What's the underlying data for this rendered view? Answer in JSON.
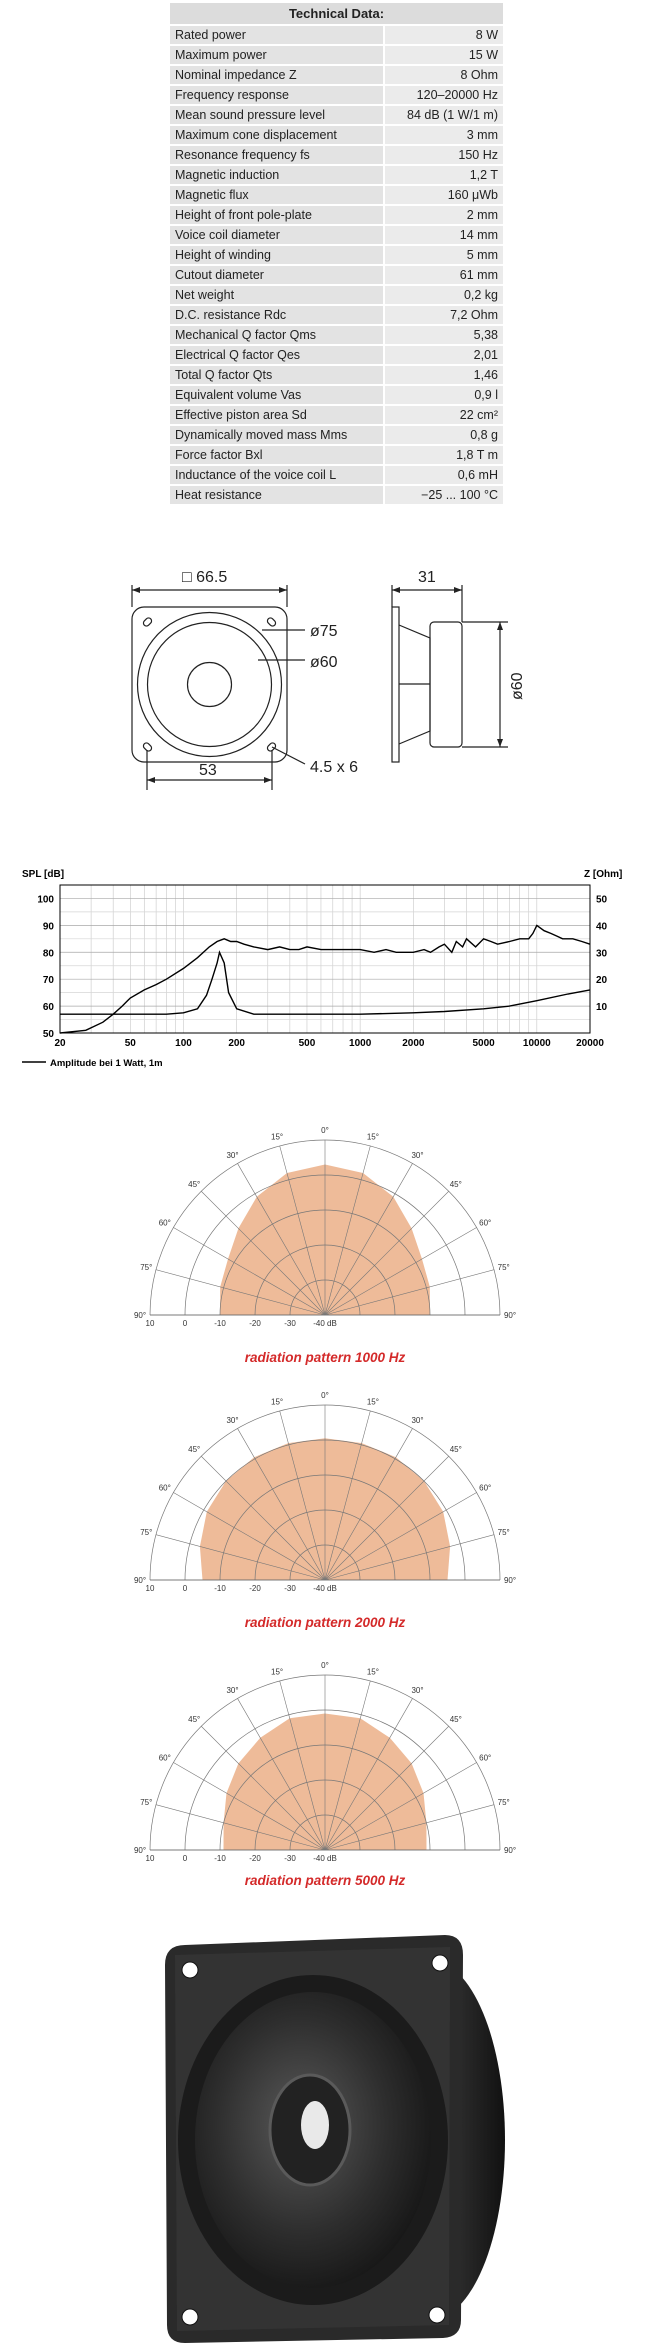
{
  "technical_data": {
    "title": "Technical Data:",
    "rows": [
      {
        "label": "Rated power",
        "value": "8 W"
      },
      {
        "label": "Maximum power",
        "value": "15 W"
      },
      {
        "label": "Nominal impedance Z",
        "value": "8 Ohm"
      },
      {
        "label": "Frequency response",
        "value": "120–20000 Hz"
      },
      {
        "label": "Mean sound pressure level",
        "value": "84 dB (1 W/1 m)"
      },
      {
        "label": "Maximum cone displacement",
        "value": "3 mm"
      },
      {
        "label": "Resonance frequency fs",
        "value": "150 Hz"
      },
      {
        "label": "Magnetic induction",
        "value": "1,2 T"
      },
      {
        "label": "Magnetic flux",
        "value": "160 μWb"
      },
      {
        "label": "Height of front pole-plate",
        "value": "2 mm"
      },
      {
        "label": "Voice coil diameter",
        "value": "14 mm"
      },
      {
        "label": "Height of winding",
        "value": "5 mm"
      },
      {
        "label": "Cutout diameter",
        "value": "61 mm"
      },
      {
        "label": "Net weight",
        "value": "0,2 kg"
      },
      {
        "label": "D.C. resistance Rdc",
        "value": "7,2 Ohm"
      },
      {
        "label": "Mechanical Q factor Qms",
        "value": "5,38"
      },
      {
        "label": "Electrical Q factor Qes",
        "value": "2,01"
      },
      {
        "label": "Total Q factor Qts",
        "value": "1,46"
      },
      {
        "label": "Equivalent volume Vas",
        "value": "0,9 l"
      },
      {
        "label": "Effective piston area Sd",
        "value": "22 cm²"
      },
      {
        "label": "Dynamically moved mass Mms",
        "value": "0,8 g"
      },
      {
        "label": "Force factor Bxl",
        "value": "1,8 T m"
      },
      {
        "label": "Inductance of the voice coil L",
        "value": "0,6 mH"
      },
      {
        "label": "Heat resistance",
        "value": "−25 ... 100 °C"
      }
    ]
  },
  "drawing": {
    "width_label": "□ 66.5",
    "outer_dia_label": "ø75",
    "inner_dia_label": "ø60",
    "hole_spacing_label": "53",
    "hole_label": "4.5 x 6",
    "depth_label": "31",
    "side_dia_label": "ø60"
  },
  "chart_data": [
    {
      "type": "line",
      "ylabel": "SPL [dB]",
      "y2label": "Z [Ohm]",
      "xscale": "log",
      "xlim": [
        20,
        20000
      ],
      "ylim": [
        50,
        105
      ],
      "y2lim": [
        0,
        55
      ],
      "grid": true,
      "xticks": [
        20,
        50,
        100,
        200,
        500,
        1000,
        2000,
        5000,
        10000,
        20000
      ],
      "xtick_labels": [
        "20",
        "50",
        "100",
        "200",
        "500",
        "1000",
        "2000",
        "5000",
        "10000",
        "20000"
      ],
      "yticks": [
        50,
        60,
        70,
        80,
        90,
        100
      ],
      "y2ticks": [
        10,
        20,
        30,
        40,
        50
      ],
      "legend": "Amplitude bei 1 Watt, 1m",
      "series": [
        {
          "name": "Amplitude bei 1 Watt, 1m",
          "x": [
            20,
            28,
            35,
            40,
            45,
            50,
            60,
            70,
            80,
            100,
            120,
            140,
            155,
            170,
            185,
            200,
            220,
            250,
            300,
            350,
            400,
            450,
            500,
            600,
            700,
            800,
            1000,
            1200,
            1400,
            1600,
            2000,
            2300,
            2500,
            2800,
            3000,
            3300,
            3500,
            3800,
            4000,
            4500,
            5000,
            5500,
            6000,
            7000,
            8000,
            9000,
            9500,
            10000,
            11000,
            12000,
            13000,
            14000,
            16000,
            18000,
            20000
          ],
          "y": [
            50,
            51,
            54,
            57,
            60,
            63,
            66,
            68,
            70,
            74,
            78,
            82,
            84,
            85,
            84,
            84,
            83,
            82,
            81,
            82,
            81,
            81,
            82,
            81,
            81,
            81,
            81,
            80,
            81,
            80,
            80,
            81,
            80,
            82,
            83,
            80,
            84,
            82,
            85,
            82,
            85,
            84,
            83,
            84,
            85,
            85,
            87,
            90,
            88,
            87,
            86,
            85,
            85,
            84,
            83
          ]
        },
        {
          "name": "",
          "x": [
            20,
            50,
            80,
            100,
            120,
            135,
            145,
            155,
            160,
            170,
            180,
            200,
            250,
            300,
            500,
            1000,
            2000,
            3000,
            5000,
            7000,
            10000,
            15000,
            20000
          ],
          "y": [
            57,
            57,
            57,
            57.5,
            59,
            64,
            70,
            76,
            80,
            76,
            65,
            59,
            57,
            57,
            57,
            57,
            57.5,
            58,
            59,
            60,
            62,
            64.5,
            66
          ]
        }
      ]
    },
    {
      "type": "polar",
      "title": "radiation pattern 1000 Hz",
      "angles": [
        0,
        15,
        30,
        45,
        60,
        75,
        90
      ],
      "range_labels": [
        "10",
        "0",
        "-10",
        "-20",
        "-30",
        "-40 dB"
      ],
      "series": [
        {
          "name": "",
          "angle": [
            -90,
            -75,
            -60,
            -45,
            -30,
            -15,
            0,
            15,
            30,
            45,
            60,
            75,
            90
          ],
          "value": [
            -10,
            -9,
            -8,
            -5,
            -1,
            2,
            3,
            2,
            -1,
            -5,
            -8,
            -9,
            -10
          ]
        }
      ]
    },
    {
      "type": "polar",
      "title": "radiation pattern 2000 Hz",
      "angles": [
        0,
        15,
        30,
        45,
        60,
        75,
        90
      ],
      "range_labels": [
        "10",
        "0",
        "-10",
        "-20",
        "-30",
        "-40 dB"
      ],
      "series": [
        {
          "name": "",
          "angle": [
            -90,
            -75,
            -60,
            -45,
            -30,
            -15,
            0,
            15,
            30,
            45,
            60,
            75,
            90
          ],
          "value": [
            -5,
            -3,
            -1,
            0,
            0.5,
            0.5,
            0.5,
            0.5,
            0.5,
            0,
            -1,
            -3,
            -5
          ]
        }
      ]
    },
    {
      "type": "polar",
      "title": "radiation pattern 5000 Hz",
      "angles": [
        0,
        15,
        30,
        45,
        60,
        75,
        90
      ],
      "range_labels": [
        "10",
        "0",
        "-10",
        "-20",
        "-30",
        "-40 dB"
      ],
      "series": [
        {
          "name": "",
          "angle": [
            -90,
            -75,
            -60,
            -45,
            -30,
            -15,
            0,
            15,
            30,
            45,
            60,
            75,
            90
          ],
          "value": [
            -11,
            -10,
            -7.5,
            -5,
            -3,
            -1,
            -1,
            -1,
            -3,
            -5,
            -7.5,
            -10,
            -11
          ]
        }
      ]
    }
  ]
}
